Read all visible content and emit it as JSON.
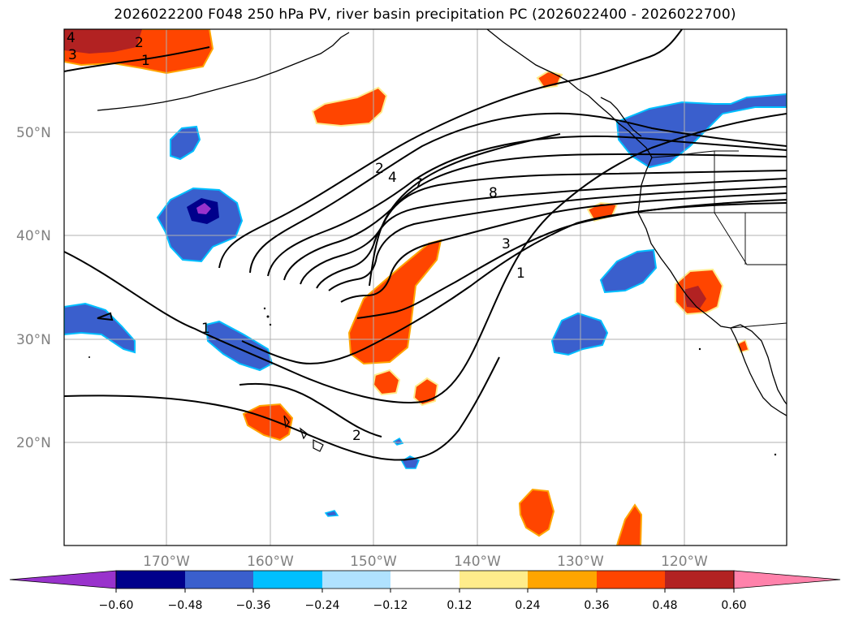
{
  "title": "2026022200 F048 250 hPa PV, river basin precipitation PC (2026022400 - 2026022700)",
  "map": {
    "lat_labels": [
      "50°N",
      "40°N",
      "30°N",
      "20°N"
    ],
    "lon_labels": [
      "170°W",
      "160°W",
      "150°W",
      "140°W",
      "130°W",
      "120°W"
    ],
    "pv_contour_labels": [
      "4",
      "3",
      "2",
      "1",
      "2",
      "4",
      "7",
      "8",
      "3",
      "1",
      "1",
      "2"
    ]
  },
  "colorbar": {
    "ticks": [
      "−0.60",
      "−0.48",
      "−0.36",
      "−0.24",
      "−0.12",
      "0.12",
      "0.24",
      "0.36",
      "0.48",
      "0.60"
    ],
    "colors": [
      "#9932CC",
      "#00008B",
      "#3A5FCD",
      "#00BFFF",
      "#B0E2FF",
      "#FFFFFF",
      "#FFEC8B",
      "#FFA500",
      "#FF4500",
      "#B22222",
      "#FF82AB"
    ]
  },
  "colors": {
    "neg_strong": "#3A5FCD",
    "neg_light": "#00BFFF",
    "pos_strong": "#FF4500",
    "pos_light": "#FFA500",
    "pos_dark": "#B22222",
    "neg_dark": "#9932CC"
  }
}
